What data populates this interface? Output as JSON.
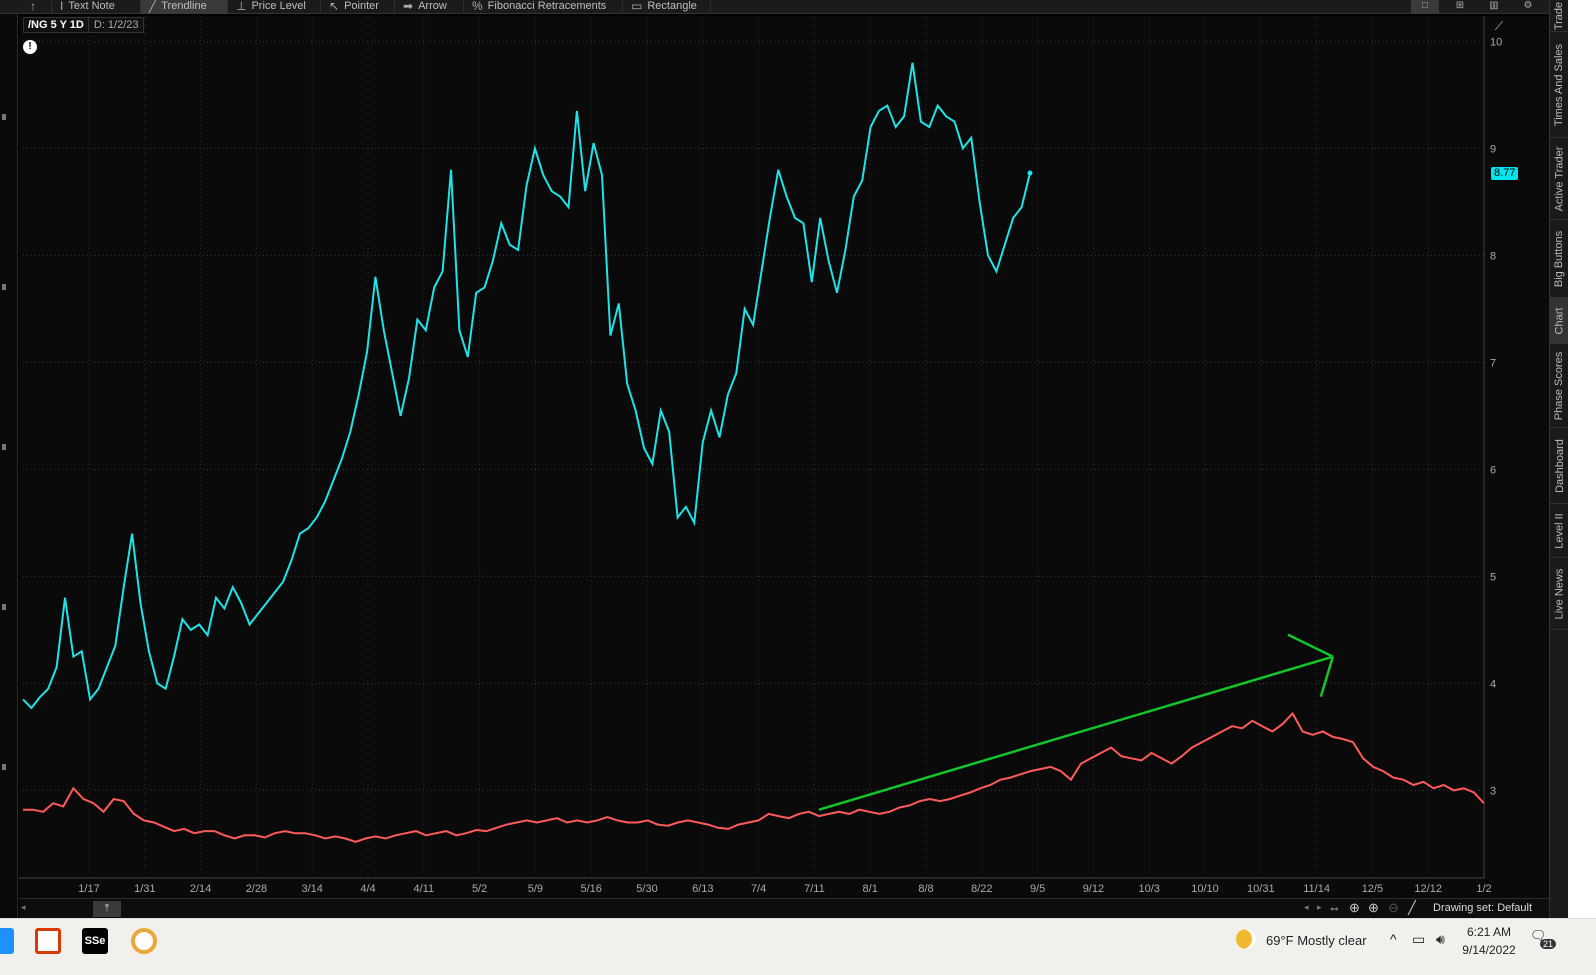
{
  "toolbar": {
    "items": [
      {
        "label": "",
        "icon": "cursor-icon"
      },
      {
        "label": "Text Note",
        "icon": "text-icon"
      },
      {
        "label": "Trendline",
        "icon": "trendline-icon"
      },
      {
        "label": "Price Level",
        "icon": "price-level-icon"
      },
      {
        "label": "Pointer",
        "icon": "pointer-icon"
      },
      {
        "label": "Arrow",
        "icon": "arrow-icon"
      },
      {
        "label": "Fibonacci Retracements",
        "icon": "fibonacci-icon"
      },
      {
        "label": "Rectangle",
        "icon": "rectangle-icon"
      }
    ],
    "active": "Trendline"
  },
  "chart_header": {
    "symbol": "/NG 5 Y 1D",
    "date": "D: 1/2/23"
  },
  "last_price": "8.77",
  "colors": {
    "primary_series": "#1fe3e8",
    "secondary_series": "#ff5a5a",
    "trendline": "#13c42b",
    "background": "#0a0a0a"
  },
  "chart_data": {
    "type": "line",
    "y_axis": {
      "ticks": [
        "10",
        "9",
        "8",
        "7",
        "6",
        "5",
        "4",
        "3"
      ],
      "ylim": [
        2.2,
        10.05
      ]
    },
    "x_axis": {
      "ticks": [
        "1/17",
        "1/31",
        "2/14",
        "2/28",
        "3/14",
        "4/4",
        "4/11",
        "5/2",
        "5/9",
        "5/16",
        "5/30",
        "6/13",
        "7/4",
        "7/11",
        "8/1",
        "8/8",
        "8/22",
        "9/5",
        "9/12",
        "10/3",
        "10/10",
        "10/31",
        "11/14",
        "12/5",
        "12/12",
        "1/2"
      ]
    },
    "grid": true,
    "series": [
      {
        "values": [
          3.85,
          3.77,
          3.87,
          3.95,
          4.15,
          4.8,
          4.25,
          4.3,
          3.85,
          3.95,
          4.15,
          4.35,
          4.9,
          5.4,
          4.75,
          4.3,
          4.0,
          3.95,
          4.25,
          4.6,
          4.5,
          4.55,
          4.45,
          4.8,
          4.7,
          4.9,
          4.75,
          4.55,
          4.65,
          4.75,
          4.85,
          4.95,
          5.15,
          5.4,
          5.45,
          5.55,
          5.7,
          5.9,
          6.1,
          6.35,
          6.7,
          7.1,
          7.8,
          7.3,
          6.9,
          6.5,
          6.85,
          7.4,
          7.3,
          7.7,
          7.85,
          8.8,
          7.3,
          7.05,
          7.65,
          7.7,
          7.95,
          8.3,
          8.1,
          8.05,
          8.65,
          9.0,
          8.75,
          8.6,
          8.55,
          8.45,
          9.35,
          8.6,
          9.05,
          8.75,
          7.25,
          7.55,
          6.8,
          6.55,
          6.2,
          6.05,
          6.55,
          6.35,
          5.55,
          5.65,
          5.5,
          6.25,
          6.55,
          6.3,
          6.7,
          6.9,
          7.5,
          7.35,
          7.85,
          8.35,
          8.8,
          8.55,
          8.35,
          8.3,
          7.75,
          8.35,
          7.95,
          7.65,
          8.05,
          8.55,
          8.7,
          9.2,
          9.35,
          9.4,
          9.2,
          9.3,
          9.8,
          9.25,
          9.2,
          9.4,
          9.3,
          9.25,
          9.0,
          9.1,
          8.5,
          8.0,
          7.85,
          8.1,
          8.35,
          8.45,
          8.77
        ],
        "x_range": [
          "1/2/22",
          "9/13/22"
        ]
      },
      {
        "values": [
          2.82,
          2.82,
          2.8,
          2.88,
          2.85,
          3.02,
          2.92,
          2.88,
          2.8,
          2.92,
          2.9,
          2.78,
          2.72,
          2.7,
          2.66,
          2.62,
          2.64,
          2.6,
          2.62,
          2.62,
          2.58,
          2.55,
          2.58,
          2.58,
          2.56,
          2.6,
          2.62,
          2.6,
          2.6,
          2.58,
          2.55,
          2.57,
          2.55,
          2.52,
          2.55,
          2.57,
          2.55,
          2.58,
          2.6,
          2.62,
          2.58,
          2.6,
          2.62,
          2.58,
          2.6,
          2.63,
          2.62,
          2.65,
          2.68,
          2.7,
          2.72,
          2.7,
          2.72,
          2.74,
          2.7,
          2.72,
          2.7,
          2.72,
          2.75,
          2.72,
          2.7,
          2.7,
          2.72,
          2.68,
          2.67,
          2.7,
          2.72,
          2.7,
          2.68,
          2.65,
          2.64,
          2.68,
          2.7,
          2.72,
          2.78,
          2.76,
          2.74,
          2.78,
          2.8,
          2.76,
          2.78,
          2.8,
          2.78,
          2.82,
          2.8,
          2.78,
          2.8,
          2.84,
          2.86,
          2.9,
          2.92,
          2.9,
          2.92,
          2.95,
          2.98,
          3.02,
          3.05,
          3.1,
          3.12,
          3.15,
          3.18,
          3.2,
          3.22,
          3.18,
          3.1,
          3.25,
          3.3,
          3.35,
          3.4,
          3.32,
          3.3,
          3.28,
          3.35,
          3.3,
          3.25,
          3.32,
          3.4,
          3.45,
          3.5,
          3.55,
          3.6,
          3.58,
          3.65,
          3.6,
          3.55,
          3.62,
          3.72,
          3.55,
          3.52,
          3.55,
          3.5,
          3.48,
          3.45,
          3.3,
          3.22,
          3.18,
          3.12,
          3.1,
          3.05,
          3.08,
          3.02,
          3.05,
          3.0,
          3.02,
          2.98,
          2.88
        ]
      }
    ],
    "annotation": {
      "type": "trendline-arrow",
      "from": {
        "x_index": 79,
        "y": 2.82
      },
      "to": {
        "x_index": 130,
        "y": 4.25
      }
    }
  },
  "bottom_bar": {
    "drawing_set": "Drawing set: Default"
  },
  "right_tabs": [
    "Trade",
    "Times And Sales",
    "Active Trader",
    "Big Buttons",
    "Chart",
    "Phase Scores",
    "Dashboard",
    "Level II",
    "Live News"
  ],
  "taskbar": {
    "apps": [
      {
        "name": "office-app-icon",
        "label": "",
        "color": "#d83b01"
      },
      {
        "name": "sse-app-icon",
        "label": "SSe",
        "color": "#000000"
      },
      {
        "name": "chrome-app-icon",
        "label": "",
        "color": "#ffffff"
      }
    ],
    "weather": "69°F  Mostly clear",
    "time": "6:21 AM",
    "date": "9/14/2022",
    "notifications": "21"
  }
}
